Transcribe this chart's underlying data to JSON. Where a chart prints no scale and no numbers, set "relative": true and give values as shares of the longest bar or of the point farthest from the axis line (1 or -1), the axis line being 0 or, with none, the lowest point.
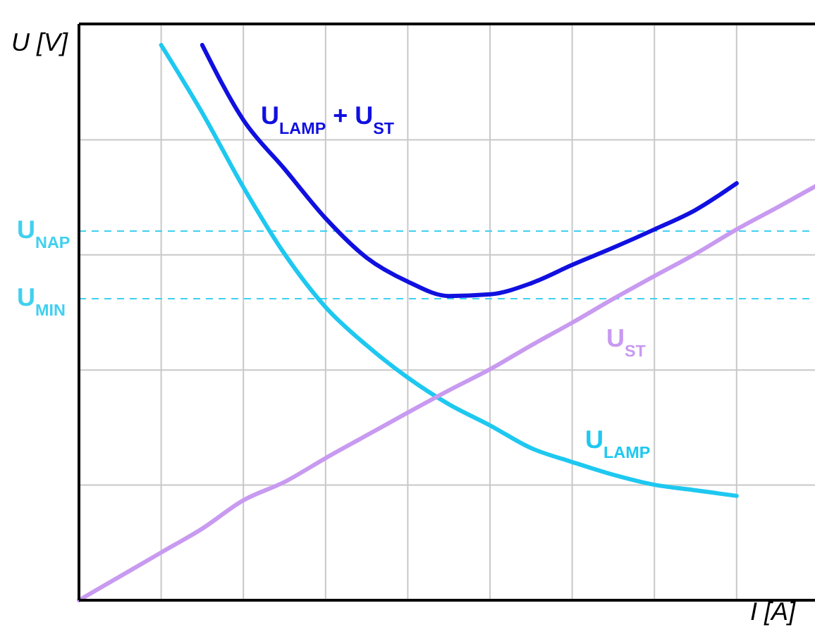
{
  "chart_data": {
    "type": "line",
    "relative": true,
    "xlabel": "I [A]",
    "ylabel": "U [V]",
    "grid": true,
    "legend": false,
    "marker": "none",
    "line_style": "solid",
    "categories": [
      null,
      null,
      null,
      null,
      null,
      null,
      null,
      null,
      null,
      null,
      null,
      null,
      null,
      null,
      null,
      null,
      null,
      null,
      null
    ],
    "series": [
      {
        "name": "U$_{LAMP}$ + U$_{ST}$",
        "color": "#1010e0",
        "values": [
          null,
          null,
          null,
          1,
          0.865,
          0.777,
          0.688,
          0.617,
          0.574,
          0.548,
          0.551,
          0.571,
          0.604,
          0.635,
          0.668,
          0.703,
          0.751,
          null,
          null
        ]
      },
      {
        "name": "U$_{LAMP}$",
        "color": "#1ec8f0",
        "values": [
          null,
          null,
          1,
          0.878,
          0.744,
          0.624,
          0.528,
          0.459,
          0.401,
          0.353,
          0.315,
          0.274,
          0.249,
          0.226,
          0.208,
          0.198,
          0.188,
          null,
          null
        ]
      },
      {
        "name": "U$_{ST}$",
        "color": "#c89af0",
        "values": [
          0,
          0.043,
          0.086,
          0.129,
          0.18,
          0.213,
          0.256,
          0.297,
          0.338,
          0.378,
          0.416,
          0.459,
          0.5,
          0.543,
          0.584,
          0.624,
          0.668,
          0.708,
          0.749
        ]
      }
    ],
    "ref_lines": [
      {
        "axis": "y",
        "value": 0.665,
        "label": "U$_{NAP}$",
        "color": "#40d0f0",
        "line_style": "dashed"
      },
      {
        "axis": "y",
        "value": 0.543,
        "label": "U$_{MIN}$",
        "color": "#40d0f0",
        "line_style": "dashed"
      }
    ]
  }
}
